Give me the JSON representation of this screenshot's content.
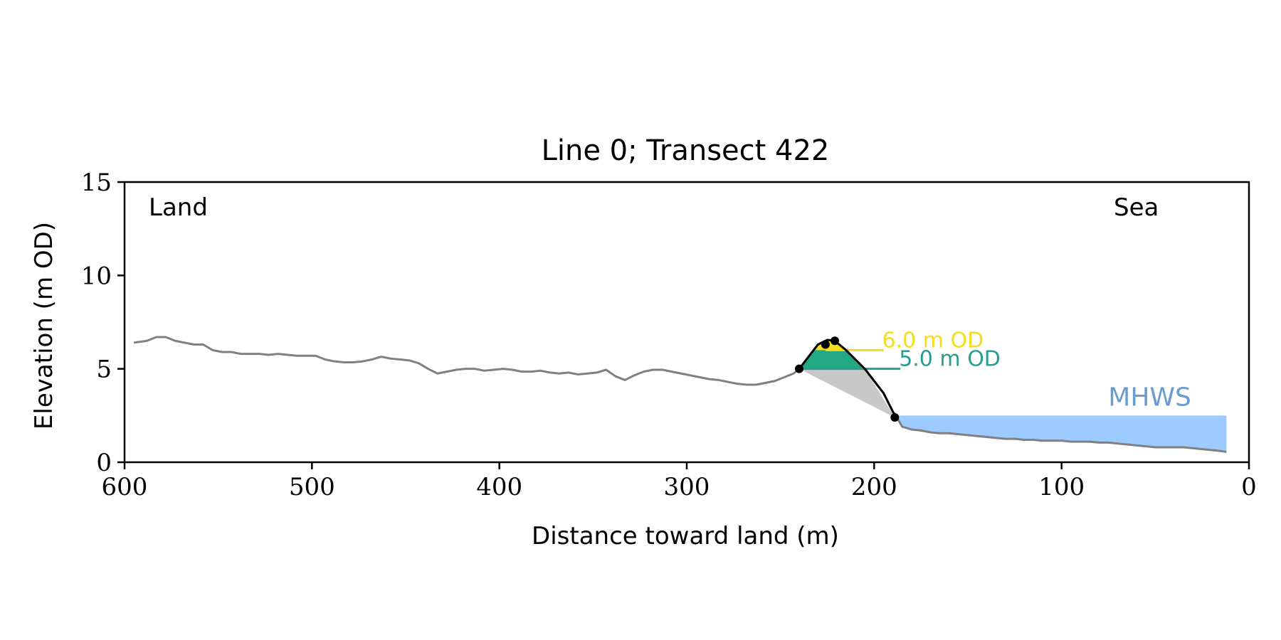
{
  "chart_data": {
    "type": "line",
    "title": "Line 0; Transect 422",
    "xlabel": "Distance toward land (m)",
    "ylabel": "Elevation (m OD)",
    "xlim": [
      600,
      0
    ],
    "ylim": [
      0,
      15
    ],
    "xticks": [
      600,
      500,
      400,
      300,
      200,
      100,
      0
    ],
    "yticks": [
      0,
      5,
      10,
      15
    ],
    "grid": false,
    "corner_labels": {
      "left": "Land",
      "right": "Sea"
    },
    "profile": {
      "x": [
        595,
        588,
        583,
        578,
        573,
        568,
        563,
        558,
        553,
        548,
        543,
        538,
        533,
        528,
        523,
        518,
        513,
        508,
        503,
        498,
        493,
        488,
        483,
        478,
        473,
        468,
        463,
        458,
        453,
        448,
        443,
        438,
        433,
        428,
        423,
        418,
        413,
        408,
        403,
        398,
        393,
        388,
        383,
        378,
        373,
        368,
        363,
        358,
        353,
        348,
        343,
        338,
        333,
        328,
        323,
        318,
        313,
        308,
        303,
        298,
        293,
        288,
        283,
        278,
        273,
        268,
        263,
        258,
        253,
        248,
        243,
        240,
        230,
        225,
        221,
        215,
        205,
        195,
        190,
        188,
        185,
        180,
        175,
        170,
        165,
        160,
        155,
        150,
        145,
        140,
        135,
        130,
        125,
        120,
        115,
        110,
        105,
        100,
        95,
        90,
        85,
        80,
        75,
        70,
        65,
        60,
        55,
        50,
        45,
        40,
        35,
        30,
        25,
        20,
        15,
        12
      ],
      "y": [
        6.4,
        6.5,
        6.7,
        6.7,
        6.5,
        6.4,
        6.3,
        6.3,
        6.0,
        5.9,
        5.9,
        5.8,
        5.8,
        5.8,
        5.75,
        5.8,
        5.75,
        5.7,
        5.7,
        5.7,
        5.5,
        5.4,
        5.35,
        5.35,
        5.4,
        5.5,
        5.65,
        5.55,
        5.5,
        5.45,
        5.3,
        5.0,
        4.75,
        4.85,
        4.95,
        5.0,
        5.0,
        4.9,
        4.95,
        5.0,
        4.95,
        4.85,
        4.85,
        4.9,
        4.8,
        4.75,
        4.8,
        4.7,
        4.75,
        4.8,
        4.95,
        4.6,
        4.4,
        4.65,
        4.85,
        4.95,
        4.95,
        4.85,
        4.75,
        4.65,
        4.55,
        4.45,
        4.4,
        4.3,
        4.2,
        4.15,
        4.15,
        4.25,
        4.35,
        4.55,
        4.75,
        5.0,
        6.3,
        6.55,
        6.5,
        6.0,
        5.0,
        3.7,
        2.7,
        2.4,
        1.9,
        1.75,
        1.7,
        1.6,
        1.55,
        1.55,
        1.5,
        1.45,
        1.4,
        1.35,
        1.3,
        1.25,
        1.25,
        1.2,
        1.2,
        1.15,
        1.15,
        1.15,
        1.1,
        1.1,
        1.1,
        1.05,
        1.05,
        1.0,
        0.95,
        0.9,
        0.85,
        0.8,
        0.8,
        0.8,
        0.8,
        0.75,
        0.7,
        0.65,
        0.6,
        0.55
      ]
    },
    "dune_outline": {
      "x": [
        240,
        230,
        225,
        221,
        215,
        205,
        195,
        190,
        188
      ],
      "y": [
        5.0,
        6.3,
        6.55,
        6.5,
        6.0,
        5.0,
        3.7,
        2.7,
        2.4
      ]
    },
    "markers": [
      {
        "x": 240,
        "y": 5.0
      },
      {
        "x": 226,
        "y": 6.3
      },
      {
        "x": 221,
        "y": 6.5
      },
      {
        "x": 189,
        "y": 2.4
      }
    ],
    "toe_triangle": [
      {
        "x": 240,
        "y": 5.0
      },
      {
        "x": 205,
        "y": 5.0
      },
      {
        "x": 189,
        "y": 2.4
      }
    ],
    "levels": [
      {
        "label": "6.0 m OD",
        "value": 6.0,
        "x_from": 226,
        "x_to": 195,
        "color": "#f5dc1e",
        "fill_color": "#f5dc1e"
      },
      {
        "label": "5.0 m OD",
        "value": 5.0,
        "x_from": 240,
        "x_to": 186,
        "color": "#2a9d8f",
        "fill_color": "#22a884"
      }
    ],
    "mhws": {
      "label": "MHWS",
      "value": 2.5,
      "x_from": 189,
      "x_to": 12,
      "color": "#9ecbff",
      "label_color": "#6a9cd0"
    },
    "colors": {
      "profile": "#808080",
      "outline": "#000000",
      "toe_fill": "#c8c8c8"
    }
  }
}
